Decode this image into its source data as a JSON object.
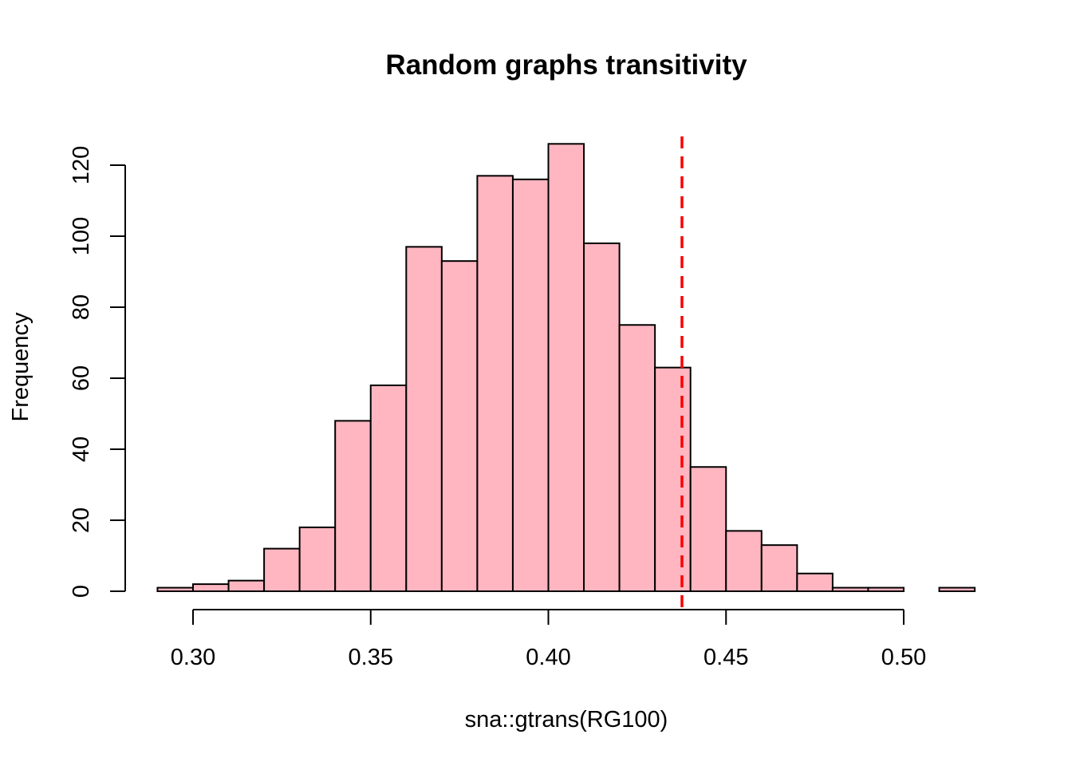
{
  "chart_data": {
    "type": "bar",
    "title": "Random graphs transitivity",
    "xlabel": "sna::gtrans(RG100)",
    "ylabel": "Frequency",
    "bin_edges": [
      0.29,
      0.3,
      0.31,
      0.32,
      0.33,
      0.34,
      0.35,
      0.36,
      0.37,
      0.38,
      0.39,
      0.4,
      0.41,
      0.42,
      0.43,
      0.44,
      0.45,
      0.46,
      0.47,
      0.48,
      0.49,
      0.5,
      0.51,
      0.52
    ],
    "values": [
      1,
      2,
      3,
      12,
      18,
      48,
      58,
      97,
      93,
      117,
      116,
      126,
      98,
      75,
      63,
      35,
      17,
      13,
      5,
      1,
      1,
      0,
      1
    ],
    "xlim": [
      0.29,
      0.52
    ],
    "ylim": [
      0,
      126
    ],
    "x_ticks": [
      0.3,
      0.35,
      0.4,
      0.45,
      0.5
    ],
    "x_tick_labels": [
      "0.30",
      "0.35",
      "0.40",
      "0.45",
      "0.50"
    ],
    "y_ticks": [
      0,
      20,
      40,
      60,
      80,
      100,
      120
    ],
    "y_tick_labels": [
      "0",
      "20",
      "40",
      "60",
      "80",
      "100",
      "120"
    ],
    "reference_line": {
      "x": 0.4376,
      "color": "#FF0000",
      "style": "dashed"
    },
    "bar_color": "#FFB6C1",
    "grid": false
  }
}
